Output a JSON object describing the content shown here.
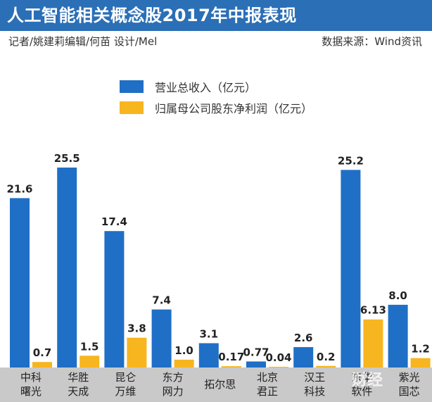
{
  "header": {
    "title": "人工智能相关概念股2017年中报表现",
    "byline": "记者/姚建莉编辑/何苗 设计/Mel",
    "source": "数据来源：Wind资讯"
  },
  "legend": [
    {
      "label": "营业总收入（亿元）",
      "color": "#1f6fc6"
    },
    {
      "label": "归属母公司股东净利润（亿元）",
      "color": "#f7b520"
    }
  ],
  "watermark": "财经",
  "chart_data": {
    "type": "bar",
    "categories": [
      [
        "中科",
        "曙光"
      ],
      [
        "华胜",
        "天成"
      ],
      [
        "昆仑",
        "万维"
      ],
      [
        "东方",
        "网力"
      ],
      [
        "拓尔思"
      ],
      [
        "北京",
        "君正"
      ],
      [
        "汉王",
        "科技"
      ],
      [
        "东华",
        "软件"
      ],
      [
        "紫光",
        "国芯"
      ]
    ],
    "series": [
      {
        "name": "营业总收入（亿元）",
        "color": "#1f6fc6",
        "values": [
          21.6,
          25.5,
          17.4,
          7.4,
          3.1,
          0.77,
          2.6,
          25.2,
          8.0
        ],
        "labels": [
          "21.6",
          "25.5",
          "17.4",
          "7.4",
          "3.1",
          "0.77",
          "2.6",
          "25.2",
          "8.0"
        ]
      },
      {
        "name": "归属母公司股东净利润（亿元）",
        "color": "#f7b520",
        "values": [
          0.7,
          1.5,
          3.8,
          1.0,
          0.17,
          0.04,
          0.2,
          6.13,
          1.2
        ],
        "labels": [
          "0.7",
          "1.5",
          "3.8",
          "1.0",
          "0.17",
          "0.04",
          "0.2",
          "6.13",
          "1.2"
        ]
      }
    ],
    "ylim": [
      0,
      25.5
    ],
    "xlabel": "",
    "ylabel": "",
    "legend_position": "top"
  }
}
